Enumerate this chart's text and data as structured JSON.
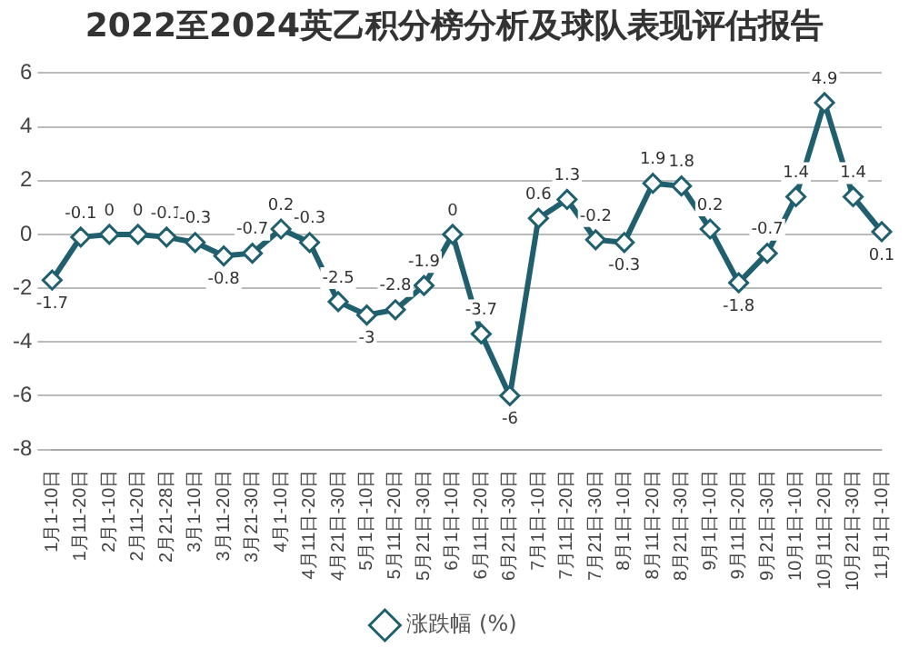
{
  "chart_data": {
    "type": "line",
    "title": "2022至2024英乙积分榜分析及球队表现评估报告",
    "categories": [
      "1月1-10日",
      "1月11-20日",
      "2月1-10日",
      "2月11-20日",
      "2月21-28日",
      "3月1-10日",
      "3月11-20日",
      "3月21-30日",
      "4月1-10日",
      "4月11日-20日",
      "4月21日-30日",
      "5月1日-10日",
      "5月11日-20日",
      "5月21日-30日",
      "6月1日-10日",
      "6月11日-20日",
      "6月21日-30日",
      "7月1日-10日",
      "7月11日-20日",
      "7月21日-30日",
      "8月1日-10日",
      "8月11日-20日",
      "8月21日-30日",
      "9月1日-10日",
      "9月11日-20日",
      "9月21日-30日",
      "10月1日-10日",
      "10月11日-20日",
      "10月21日-30日",
      "11月1日-10日"
    ],
    "series": [
      {
        "name": "涨跌幅 (%)",
        "color": "#1f5f6e",
        "values": [
          -1.7,
          -0.1,
          0,
          0,
          -0.1,
          -0.3,
          -0.8,
          -0.7,
          0.2,
          -0.3,
          -2.5,
          -3,
          -2.8,
          -1.9,
          0,
          -3.7,
          -6,
          0.6,
          1.3,
          -0.2,
          -0.3,
          1.9,
          1.8,
          0.2,
          -1.8,
          -0.7,
          1.4,
          4.9,
          1.4,
          0.1
        ]
      }
    ],
    "ylim": [
      -8,
      6
    ],
    "yticks": [
      -8,
      -6,
      -4,
      -2,
      0,
      2,
      4,
      6
    ],
    "grid": "y",
    "legend": "bottom",
    "marker": "diamond",
    "line_style": "solid",
    "data_labels": true
  }
}
